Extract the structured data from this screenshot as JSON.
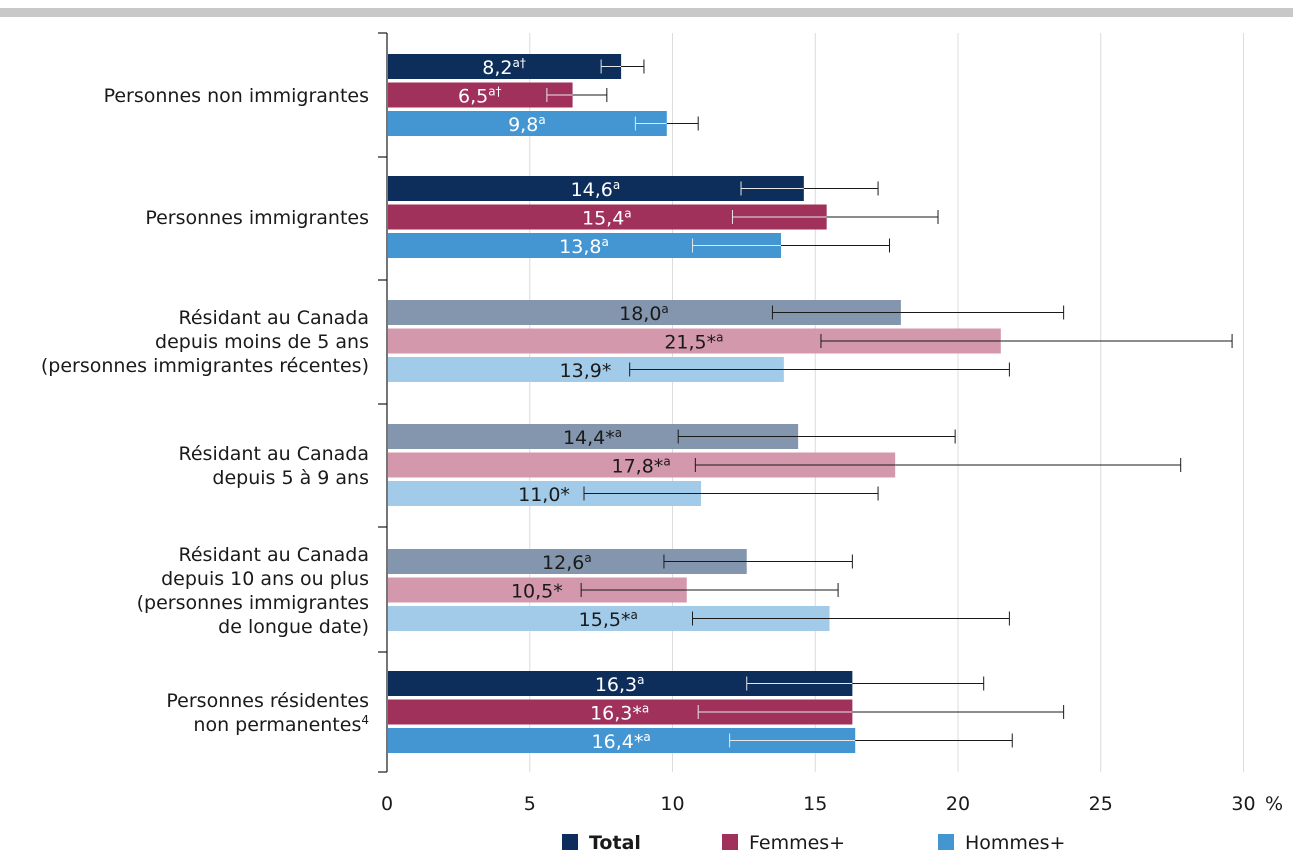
{
  "chart_data": {
    "type": "bar",
    "orientation": "horizontal",
    "x_unit": "%",
    "xlim": [
      0,
      30
    ],
    "x_ticks": [
      "0",
      "5",
      "10",
      "15",
      "20",
      "25",
      "30"
    ],
    "grid": "vertical",
    "legend_position": "bottom",
    "series": [
      {
        "name": "Total",
        "color": "#0d2d5a",
        "light_color": "#8496ad"
      },
      {
        "name": "Femmes+",
        "color": "#a0315a",
        "light_color": "#d498ad"
      },
      {
        "name": "Hommes+",
        "color": "#4496d3",
        "light_color": "#a2cbe9"
      }
    ],
    "categories": [
      {
        "label_lines": [
          "Personnes non immigrantes"
        ],
        "style": "dark",
        "bars": [
          {
            "value": 8.2,
            "label": "8,2",
            "sup": "a†",
            "ci": [
              7.5,
              9.0
            ]
          },
          {
            "value": 6.5,
            "label": "6,5",
            "sup": "a†",
            "ci": [
              5.6,
              7.7
            ]
          },
          {
            "value": 9.8,
            "label": "9,8",
            "sup": "a",
            "ci": [
              8.7,
              10.9
            ]
          }
        ]
      },
      {
        "label_lines": [
          "Personnes immigrantes"
        ],
        "style": "dark",
        "bars": [
          {
            "value": 14.6,
            "label": "14,6",
            "sup": "a",
            "ci": [
              12.4,
              17.2
            ]
          },
          {
            "value": 15.4,
            "label": "15,4",
            "sup": "a",
            "ci": [
              12.1,
              19.3
            ]
          },
          {
            "value": 13.8,
            "label": "13,8",
            "sup": "a",
            "ci": [
              10.7,
              17.6
            ]
          }
        ]
      },
      {
        "label_lines": [
          "Résidant au Canada",
          "depuis moins de 5 ans",
          "(personnes immigrantes récentes)"
        ],
        "style": "light",
        "bars": [
          {
            "value": 18.0,
            "label": "18,0",
            "sup": "a",
            "ci": [
              13.5,
              23.7
            ]
          },
          {
            "value": 21.5,
            "label": "21,5*",
            "sup": "a",
            "ci": [
              15.2,
              29.6
            ]
          },
          {
            "value": 13.9,
            "label": "13,9*",
            "sup": "",
            "ci": [
              8.5,
              21.8
            ]
          }
        ]
      },
      {
        "label_lines": [
          "Résidant au Canada",
          "depuis 5 à 9 ans"
        ],
        "style": "light",
        "bars": [
          {
            "value": 14.4,
            "label": "14,4*",
            "sup": "a",
            "ci": [
              10.2,
              19.9
            ]
          },
          {
            "value": 17.8,
            "label": "17,8*",
            "sup": "a",
            "ci": [
              10.8,
              27.8
            ]
          },
          {
            "value": 11.0,
            "label": "11,0*",
            "sup": "",
            "ci": [
              6.9,
              17.2
            ]
          }
        ]
      },
      {
        "label_lines": [
          "Résidant au Canada",
          "depuis 10 ans ou plus",
          "(personnes immigrantes",
          "de longue date)"
        ],
        "style": "light",
        "bars": [
          {
            "value": 12.6,
            "label": "12,6",
            "sup": "a",
            "ci": [
              9.7,
              16.3
            ]
          },
          {
            "value": 10.5,
            "label": "10,5*",
            "sup": "",
            "ci": [
              6.8,
              15.8
            ]
          },
          {
            "value": 15.5,
            "label": "15,5*",
            "sup": "a",
            "ci": [
              10.7,
              21.8
            ]
          }
        ]
      },
      {
        "label_lines": [
          "Personnes résidentes",
          "non permanentes"
        ],
        "label_sup": "4",
        "style": "dark",
        "bars": [
          {
            "value": 16.3,
            "label": "16,3",
            "sup": "a",
            "ci": [
              12.6,
              20.9
            ]
          },
          {
            "value": 16.3,
            "label": "16,3*",
            "sup": "a",
            "ci": [
              10.9,
              23.7
            ]
          },
          {
            "value": 16.4,
            "label": "16,4*",
            "sup": "a",
            "ci": [
              12.0,
              21.9
            ]
          }
        ]
      }
    ]
  }
}
